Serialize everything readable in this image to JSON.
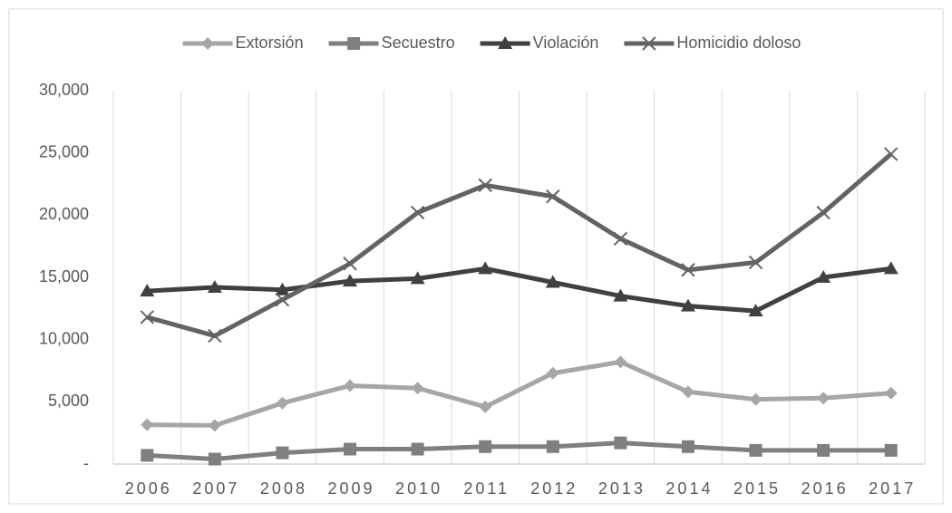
{
  "chart_data": {
    "type": "line",
    "categories": [
      "2006",
      "2007",
      "2008",
      "2009",
      "2010",
      "2011",
      "2012",
      "2013",
      "2014",
      "2015",
      "2016",
      "2017"
    ],
    "series": [
      {
        "name": "Extorsión",
        "color": "#a6a6a6",
        "marker": "diamond",
        "values": [
          3157,
          3100,
          4900,
          6300,
          6100,
          4600,
          7300,
          8200,
          5800,
          5200,
          5300,
          5700
        ]
      },
      {
        "name": "Secuestro",
        "color": "#7f7f7f",
        "marker": "square",
        "values": [
          700,
          400,
          900,
          1200,
          1200,
          1400,
          1400,
          1700,
          1400,
          1100,
          1100,
          1100
        ]
      },
      {
        "name": "Violación",
        "color": "#404040",
        "marker": "triangle",
        "values": [
          13900,
          14200,
          14000,
          14700,
          14900,
          15700,
          14600,
          13500,
          12700,
          12300,
          15000,
          15700
        ]
      },
      {
        "name": "Homicidio doloso",
        "color": "#636363",
        "marker": "x",
        "values": [
          11800,
          10300,
          13200,
          16100,
          20200,
          22400,
          21500,
          18100,
          15600,
          16200,
          20200,
          24900
        ]
      }
    ],
    "ylim": [
      0,
      30000
    ],
    "yticks": [
      {
        "value": 0,
        "label": "-"
      },
      {
        "value": 5000,
        "label": "5,000"
      },
      {
        "value": 10000,
        "label": "10,000"
      },
      {
        "value": 15000,
        "label": "15,000"
      },
      {
        "value": 20000,
        "label": "20,000"
      },
      {
        "value": 25000,
        "label": "25,000"
      },
      {
        "value": 30000,
        "label": "30,000"
      }
    ],
    "grid": "x",
    "legend": "top"
  }
}
